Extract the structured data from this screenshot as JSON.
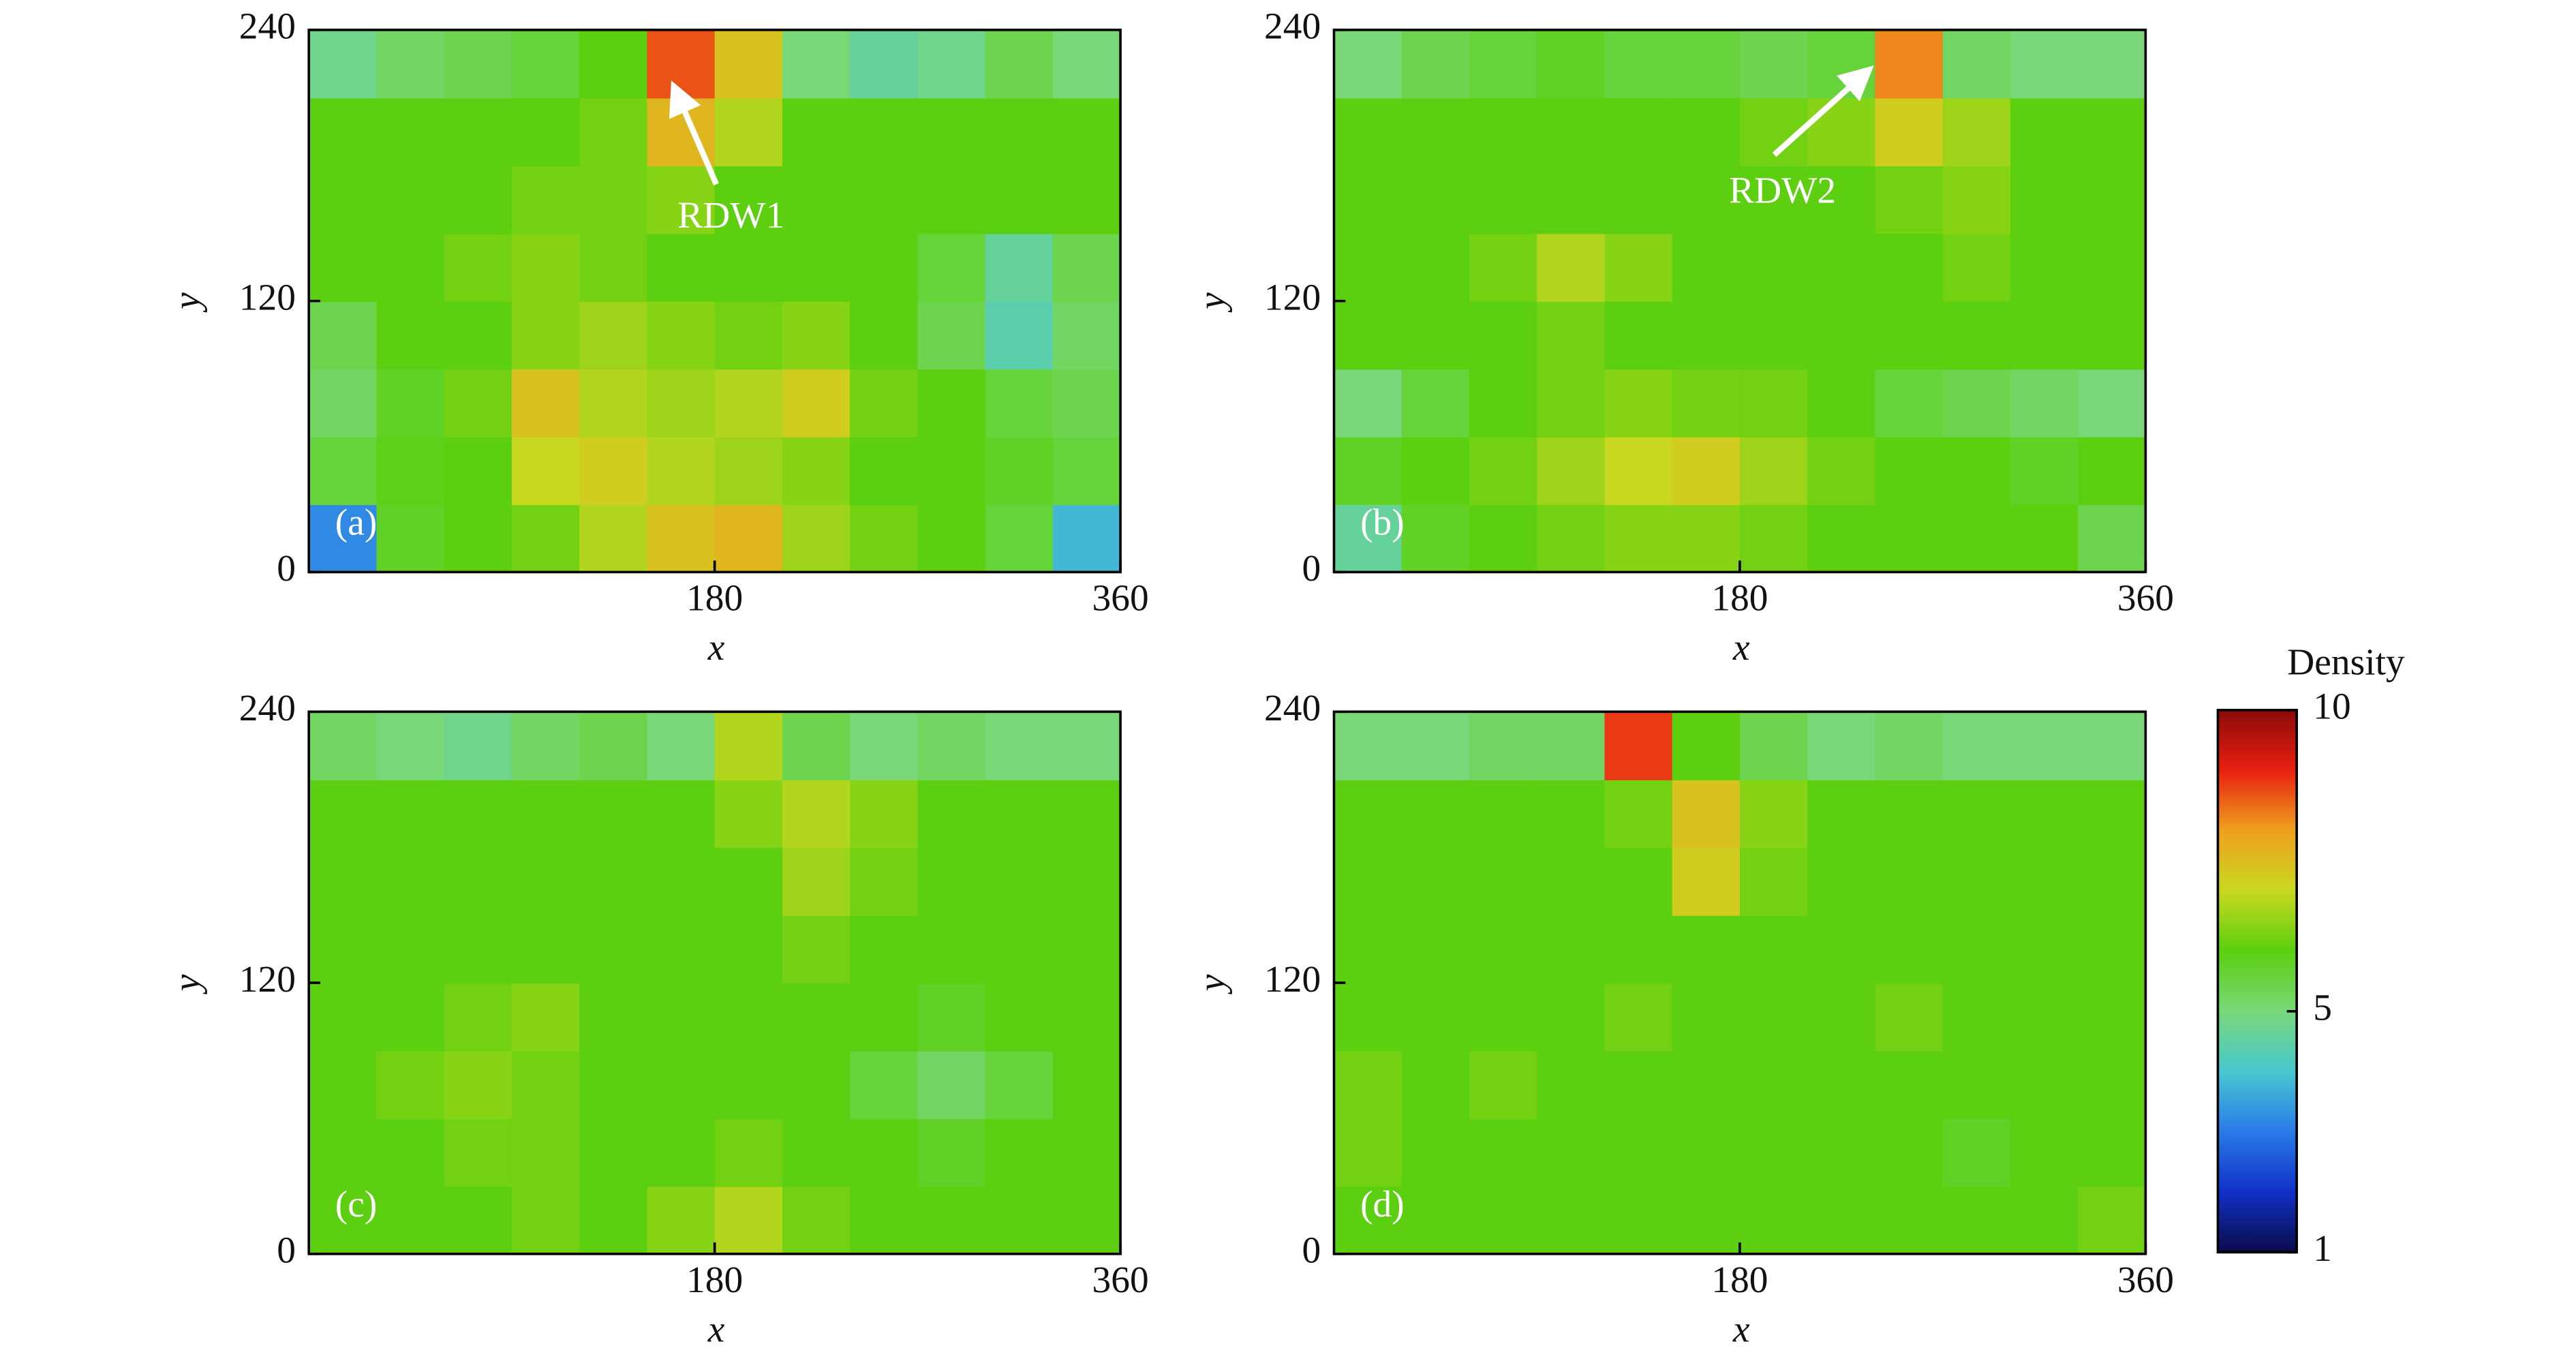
{
  "chart_data": [
    {
      "type": "heatmap",
      "panel_label": "(a)",
      "annotation": "RDW1",
      "xlabel": "x",
      "ylabel": "y",
      "xlim": [
        0,
        360
      ],
      "ylim": [
        0,
        240
      ],
      "xticks": [
        180,
        360
      ],
      "yticks": [
        0,
        120,
        240
      ],
      "x": [
        15,
        45,
        75,
        105,
        135,
        165,
        195,
        225,
        255,
        285,
        315,
        345
      ],
      "y": [
        15,
        45,
        75,
        105,
        135,
        165,
        195,
        225
      ],
      "values": [
        [
          3.2,
          5.8,
          6.0,
          6.2,
          6.8,
          7.4,
          7.6,
          6.6,
          6.2,
          6.0,
          5.6,
          3.8
        ],
        [
          5.6,
          5.9,
          6.0,
          7.0,
          7.2,
          6.8,
          6.6,
          6.4,
          6.0,
          6.0,
          5.8,
          5.6
        ],
        [
          5.2,
          5.8,
          6.2,
          7.4,
          6.8,
          6.6,
          6.8,
          7.2,
          6.2,
          6.0,
          5.6,
          5.4
        ],
        [
          5.4,
          6.0,
          6.0,
          6.4,
          6.6,
          6.4,
          6.2,
          6.4,
          6.0,
          5.4,
          4.4,
          5.2
        ],
        [
          6.0,
          6.0,
          6.2,
          6.4,
          6.2,
          6.0,
          6.0,
          6.0,
          6.0,
          5.6,
          4.6,
          5.4
        ],
        [
          6.0,
          6.0,
          6.0,
          6.2,
          6.2,
          6.4,
          6.0,
          6.0,
          6.0,
          6.0,
          6.0,
          6.0
        ],
        [
          6.0,
          6.0,
          6.0,
          6.0,
          6.2,
          7.6,
          6.8,
          6.0,
          6.0,
          6.0,
          6.0,
          6.0
        ],
        [
          4.8,
          5.2,
          5.4,
          5.6,
          6.0,
          8.6,
          7.4,
          5.0,
          4.6,
          4.8,
          5.4,
          5.0
        ]
      ]
    },
    {
      "type": "heatmap",
      "panel_label": "(b)",
      "annotation": "RDW2",
      "xlabel": "x",
      "ylabel": "y",
      "xlim": [
        0,
        360
      ],
      "ylim": [
        0,
        240
      ],
      "xticks": [
        180,
        360
      ],
      "yticks": [
        0,
        120,
        240
      ],
      "x": [
        15,
        45,
        75,
        105,
        135,
        165,
        195,
        225,
        255,
        285,
        315,
        345
      ],
      "y": [
        15,
        45,
        75,
        105,
        135,
        165,
        195,
        225
      ],
      "values": [
        [
          4.6,
          5.8,
          6.0,
          6.2,
          6.4,
          6.4,
          6.2,
          6.0,
          6.0,
          6.0,
          6.0,
          5.4
        ],
        [
          5.8,
          6.0,
          6.2,
          6.6,
          7.0,
          7.2,
          6.6,
          6.2,
          6.0,
          6.0,
          5.8,
          6.0
        ],
        [
          5.0,
          5.6,
          6.0,
          6.2,
          6.4,
          6.2,
          6.2,
          6.0,
          5.6,
          5.4,
          5.2,
          5.0
        ],
        [
          6.0,
          6.0,
          6.0,
          6.2,
          6.0,
          6.0,
          6.0,
          6.0,
          6.0,
          6.0,
          6.0,
          6.0
        ],
        [
          6.0,
          6.0,
          6.2,
          6.8,
          6.4,
          6.0,
          6.0,
          6.0,
          6.0,
          6.2,
          6.0,
          6.0
        ],
        [
          6.0,
          6.0,
          6.0,
          6.0,
          6.0,
          6.0,
          6.0,
          6.0,
          6.2,
          6.4,
          6.0,
          6.0
        ],
        [
          6.0,
          6.0,
          6.0,
          6.0,
          6.0,
          6.0,
          6.2,
          6.4,
          7.2,
          6.6,
          6.0,
          6.0
        ],
        [
          5.0,
          5.4,
          5.6,
          5.8,
          5.6,
          5.6,
          5.4,
          5.6,
          8.2,
          5.2,
          5.0,
          5.0
        ]
      ]
    },
    {
      "type": "heatmap",
      "panel_label": "(c)",
      "xlabel": "x",
      "ylabel": "y",
      "xlim": [
        0,
        360
      ],
      "ylim": [
        0,
        240
      ],
      "xticks": [
        180,
        360
      ],
      "yticks": [
        0,
        120,
        240
      ],
      "x": [
        15,
        45,
        75,
        105,
        135,
        165,
        195,
        225,
        255,
        285,
        315,
        345
      ],
      "y": [
        15,
        45,
        75,
        105,
        135,
        165,
        195,
        225
      ],
      "values": [
        [
          6.0,
          6.0,
          6.0,
          6.2,
          6.0,
          6.4,
          6.8,
          6.2,
          6.0,
          6.0,
          6.0,
          6.0
        ],
        [
          6.0,
          6.0,
          6.2,
          6.2,
          6.0,
          6.0,
          6.2,
          6.0,
          6.0,
          5.8,
          6.0,
          6.0
        ],
        [
          6.0,
          6.2,
          6.4,
          6.2,
          6.0,
          6.0,
          6.0,
          6.0,
          5.6,
          5.2,
          5.6,
          6.0
        ],
        [
          6.0,
          6.0,
          6.2,
          6.4,
          6.0,
          6.0,
          6.0,
          6.0,
          6.0,
          5.8,
          6.0,
          6.0
        ],
        [
          6.0,
          6.0,
          6.0,
          6.0,
          6.0,
          6.0,
          6.0,
          6.2,
          6.0,
          6.0,
          6.0,
          6.0
        ],
        [
          6.0,
          6.0,
          6.0,
          6.0,
          6.0,
          6.0,
          6.0,
          6.6,
          6.2,
          6.0,
          6.0,
          6.0
        ],
        [
          6.0,
          6.0,
          6.0,
          6.0,
          6.0,
          6.0,
          6.4,
          6.8,
          6.4,
          6.0,
          6.0,
          6.0
        ],
        [
          5.2,
          5.0,
          4.8,
          5.2,
          5.4,
          5.0,
          6.8,
          5.4,
          5.0,
          5.2,
          5.0,
          5.0
        ]
      ]
    },
    {
      "type": "heatmap",
      "panel_label": "(d)",
      "xlabel": "x",
      "ylabel": "y",
      "xlim": [
        0,
        360
      ],
      "ylim": [
        0,
        240
      ],
      "xticks": [
        180,
        360
      ],
      "yticks": [
        0,
        120,
        240
      ],
      "x": [
        15,
        45,
        75,
        105,
        135,
        165,
        195,
        225,
        255,
        285,
        315,
        345
      ],
      "y": [
        15,
        45,
        75,
        105,
        135,
        165,
        195,
        225
      ],
      "values": [
        [
          6.0,
          6.0,
          6.0,
          6.0,
          6.0,
          6.0,
          6.0,
          6.0,
          6.0,
          6.0,
          6.0,
          6.2
        ],
        [
          6.2,
          6.0,
          6.0,
          6.0,
          6.0,
          6.0,
          6.0,
          6.0,
          6.0,
          5.8,
          6.0,
          6.0
        ],
        [
          6.2,
          6.0,
          6.2,
          6.0,
          6.0,
          6.0,
          6.0,
          6.0,
          6.0,
          6.0,
          6.0,
          6.0
        ],
        [
          6.0,
          6.0,
          6.0,
          6.0,
          6.2,
          6.0,
          6.0,
          6.0,
          6.2,
          6.0,
          6.0,
          6.0
        ],
        [
          6.0,
          6.0,
          6.0,
          6.0,
          6.0,
          6.0,
          6.0,
          6.0,
          6.0,
          6.0,
          6.0,
          6.0
        ],
        [
          6.0,
          6.0,
          6.0,
          6.0,
          6.0,
          7.2,
          6.2,
          6.0,
          6.0,
          6.0,
          6.0,
          6.0
        ],
        [
          6.0,
          6.0,
          6.0,
          6.0,
          6.2,
          7.4,
          6.4,
          6.0,
          6.0,
          6.0,
          6.0,
          6.0
        ],
        [
          5.0,
          5.0,
          5.2,
          5.2,
          8.8,
          6.0,
          5.4,
          5.0,
          5.2,
          5.0,
          5.0,
          5.0
        ]
      ]
    }
  ],
  "colorbar": {
    "label": "Density",
    "lim": [
      1,
      10
    ],
    "ticks": [
      1,
      5,
      10
    ],
    "colormap": [
      "#0b0b4a",
      "#1030c8",
      "#2a7ae8",
      "#48c8d0",
      "#78d878",
      "#5ccf10",
      "#c8d820",
      "#f0a020",
      "#e82010",
      "#8a0a0a"
    ]
  }
}
